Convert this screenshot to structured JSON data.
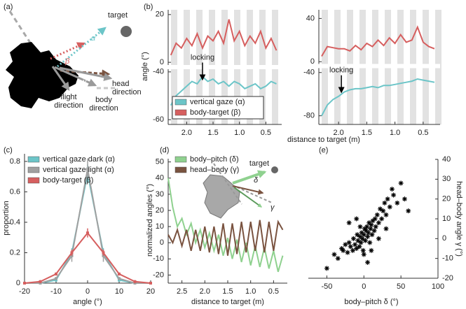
{
  "panel_a": {
    "label": "(a)",
    "target": "target",
    "beta": "β",
    "alpha": "α",
    "gamma": "γ",
    "head_direction": [
      "head",
      "direction"
    ],
    "flight_direction": [
      "flight",
      "direction"
    ],
    "body_direction": [
      "body",
      "direction"
    ]
  },
  "chart_data": [
    {
      "type": "line",
      "panel": "(b)",
      "ylabel": "angle (°)",
      "x": [
        2.3,
        2.2,
        2.1,
        2.0,
        1.9,
        1.8,
        1.7,
        1.6,
        1.5,
        1.4,
        1.3,
        1.2,
        1.1,
        1.0,
        0.9,
        0.8,
        0.7,
        0.6,
        0.5,
        0.4,
        0.3
      ],
      "series": [
        {
          "name": "vertical gaze (α)",
          "color": "#6cc5c8",
          "values": [
            -54,
            -50,
            -48,
            -46,
            -44,
            -45,
            -42,
            -44,
            -43,
            -45,
            -44,
            -46,
            -44,
            -45,
            -47,
            -46,
            -45,
            -47,
            -46,
            -44,
            -45
          ]
        },
        {
          "name": "body-target (β)",
          "color": "#d65f5f",
          "values": [
            3,
            8,
            6,
            10,
            7,
            12,
            6,
            11,
            9,
            13,
            8,
            18,
            9,
            13,
            7,
            11,
            8,
            13,
            6,
            10,
            5
          ]
        }
      ],
      "xlim": [
        2.35,
        0.2
      ],
      "xticks": [
        {
          "value": 2,
          "label": "2.0"
        },
        1.5,
        {
          "value": 1,
          "label": "1.0"
        },
        0.5
      ],
      "ylim": [
        -62,
        22
      ],
      "ybreak": [
        -38,
        -2
      ],
      "yticks": [
        20,
        0,
        -40,
        -60
      ],
      "shading": true,
      "legend": "lower left",
      "annotation": {
        "text": "locking",
        "x": 1.7,
        "y": -44
      }
    },
    {
      "type": "line",
      "xlabel": "distance to target (m)",
      "x": [
        2.3,
        2.2,
        2.1,
        2.0,
        1.9,
        1.8,
        1.7,
        1.6,
        1.5,
        1.4,
        1.3,
        1.2,
        1.1,
        1.0,
        0.9,
        0.8,
        0.7,
        0.6,
        0.5,
        0.4,
        0.3
      ],
      "series": [
        {
          "name": "vertical gaze (α)",
          "color": "#6cc5c8",
          "values": [
            -80,
            -70,
            -65,
            -62,
            -58,
            -56,
            -55,
            -55,
            -54,
            -53,
            -54,
            -52,
            -52,
            -51,
            -50,
            -49,
            -48,
            -46,
            -47,
            -48,
            -49
          ]
        },
        {
          "name": "body-target (β)",
          "color": "#d65f5f",
          "values": [
            5,
            14,
            13,
            12,
            12,
            10,
            15,
            11,
            17,
            14,
            20,
            15,
            22,
            17,
            25,
            18,
            20,
            32,
            18,
            14,
            12
          ]
        }
      ],
      "xlim": [
        2.35,
        0.2
      ],
      "xticks": [
        {
          "value": 2,
          "label": "2.0"
        },
        1.5,
        {
          "value": 1,
          "label": "1.0"
        },
        0.5
      ],
      "ylim": [
        -88,
        48
      ],
      "ybreak": [
        -34,
        -4
      ],
      "yticks": [
        40,
        0,
        -40,
        -80
      ],
      "shading": true,
      "annotation": {
        "text": "locking",
        "x": 1.95,
        "y": -60
      }
    },
    {
      "type": "line",
      "panel": "(c)",
      "xlabel": "angle (°)",
      "ylabel": "proportion",
      "x": [
        -20,
        -15,
        -10,
        -5,
        0,
        5,
        10,
        15,
        20
      ],
      "series": [
        {
          "name": "vertical gaze dark (α)",
          "color": "#6cc5c8",
          "values": [
            0,
            0,
            0.02,
            0.2,
            0.72,
            0.2,
            0.02,
            0,
            0
          ],
          "errors": [
            0,
            0,
            0.01,
            0.03,
            0.06,
            0.03,
            0.01,
            0,
            0
          ]
        },
        {
          "name": "vertical gaze light (α)",
          "color": "#a0a0a0",
          "values": [
            0,
            0,
            0.03,
            0.18,
            0.75,
            0.18,
            0.03,
            0,
            0
          ],
          "errors": [
            0,
            0,
            0.01,
            0.04,
            0.07,
            0.04,
            0.01,
            0,
            0
          ]
        },
        {
          "name": "body-target (β)",
          "color": "#d65f5f",
          "values": [
            0,
            0.01,
            0.06,
            0.2,
            0.33,
            0.2,
            0.06,
            0.01,
            0
          ],
          "errors": [
            0,
            0.01,
            0.01,
            0.02,
            0.03,
            0.02,
            0.01,
            0.01,
            0
          ]
        }
      ],
      "xlim": [
        -20,
        20
      ],
      "xticks": [
        -20,
        -10,
        0,
        10,
        20
      ],
      "ylim": [
        0,
        0.85
      ],
      "yticks": [
        0,
        0.2,
        0.4,
        0.6,
        0.8
      ],
      "legend": "upper left"
    },
    {
      "type": "line",
      "panel": "(d)",
      "xlabel": "distance to target (m)",
      "ylabel": "normalized angles (°)",
      "x": [
        2.8,
        2.7,
        2.6,
        2.5,
        2.4,
        2.3,
        2.2,
        2.1,
        2.0,
        1.9,
        1.8,
        1.7,
        1.6,
        1.5,
        1.4,
        1.3,
        1.2,
        1.1,
        1.0,
        0.9,
        0.8,
        0.7,
        0.6,
        0.5,
        0.4,
        0.3
      ],
      "series": [
        {
          "name": "body–pitch (δ)",
          "color": "#8fd18f",
          "values": [
            40,
            22,
            10,
            15,
            5,
            12,
            0,
            8,
            -3,
            6,
            -5,
            5,
            -8,
            3,
            -10,
            2,
            -12,
            0,
            -14,
            -2,
            -15,
            -3,
            -16,
            -5,
            -18,
            -8
          ]
        },
        {
          "name": "head–body (γ)",
          "color": "#7a5340",
          "values": [
            5,
            0,
            8,
            -2,
            8,
            -5,
            8,
            -5,
            10,
            -6,
            10,
            -7,
            12,
            -8,
            12,
            -7,
            13,
            -6,
            13,
            -5,
            14,
            -6,
            13,
            -5,
            13,
            8
          ]
        }
      ],
      "xlim": [
        2.8,
        0.2
      ],
      "xticks": [
        2.5,
        {
          "value": 2,
          "label": "2.0"
        },
        1.5,
        {
          "value": 1,
          "label": "1.0"
        },
        0.5
      ],
      "ylim": [
        -25,
        52
      ],
      "yticks": [
        -20,
        -10,
        0,
        10,
        20,
        30,
        40,
        50
      ],
      "legend": "upper left",
      "inset": {
        "target": "target",
        "delta": "δ",
        "gamma": "γ"
      }
    },
    {
      "type": "scatter",
      "panel": "(e)",
      "xlabel": "body–pitch δ (°)",
      "ylabel": "head–body angle γ (°)",
      "color": "#000000",
      "yaxis": "right",
      "x": [
        -40,
        -35,
        -30,
        -28,
        -25,
        -22,
        -20,
        -18,
        -15,
        -14,
        -12,
        -10,
        -9,
        -8,
        -6,
        -5,
        -4,
        -3,
        -2,
        -1,
        0,
        1,
        2,
        3,
        4,
        5,
        6,
        7,
        8,
        9,
        10,
        11,
        12,
        14,
        15,
        16,
        18,
        20,
        22,
        24,
        26,
        28,
        30,
        32,
        35,
        38,
        40,
        45,
        50,
        55,
        -50,
        -10,
        5,
        20,
        0,
        -5,
        10,
        60,
        30,
        -20
      ],
      "values": [
        -8,
        -10,
        -5,
        -6,
        -3,
        -7,
        -2,
        -4,
        -6,
        0,
        -3,
        -5,
        2,
        -1,
        -4,
        1,
        -2,
        3,
        0,
        -6,
        2,
        5,
        -1,
        4,
        6,
        1,
        3,
        8,
        -2,
        5,
        7,
        2,
        9,
        4,
        10,
        6,
        12,
        8,
        15,
        10,
        14,
        18,
        12,
        20,
        16,
        25,
        22,
        18,
        28,
        20,
        -15,
        10,
        -12,
        0,
        -8,
        6,
        -6,
        14,
        5,
        8
      ],
      "xlim": [
        -75,
        100
      ],
      "xticks": [
        -50,
        0,
        50,
        100
      ],
      "ylim": [
        -20,
        40
      ],
      "yticks": [
        -20,
        -10,
        0,
        10,
        20,
        30,
        40
      ]
    }
  ]
}
